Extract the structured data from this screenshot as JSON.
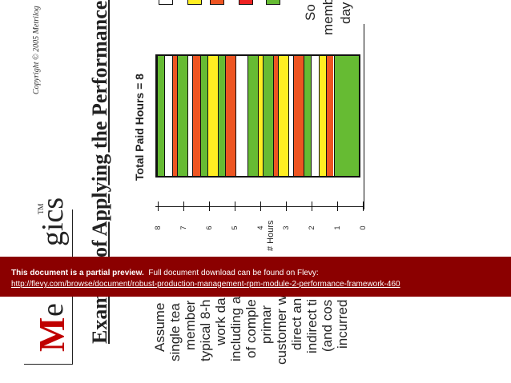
{
  "logo": {
    "m": "M",
    "e": "e",
    "tail": "gics",
    "tm": "TM"
  },
  "copyright": "Copyright © 2005 Metrilog",
  "title": {
    "left": "Exam",
    "right": "of Applying the Performance F"
  },
  "chart_data": {
    "type": "bar",
    "title": "Total Paid Hours = 8",
    "xlabel": "# Hours",
    "xlim": [
      0,
      8
    ],
    "ticks": [
      "8",
      "7",
      "6",
      "5",
      "4",
      "3",
      "2",
      "1",
      "0"
    ],
    "segments": [
      {
        "from": 0.0,
        "to": 1.0,
        "color": "#66bb33"
      },
      {
        "from": 1.0,
        "to": 1.3,
        "color": "#ee5522"
      },
      {
        "from": 1.3,
        "to": 1.6,
        "color": "#ffee22"
      },
      {
        "from": 1.6,
        "to": 1.9,
        "color": "#ffffff"
      },
      {
        "from": 1.9,
        "to": 2.2,
        "color": "#66bb33"
      },
      {
        "from": 2.2,
        "to": 2.6,
        "color": "#ee5522"
      },
      {
        "from": 2.6,
        "to": 2.8,
        "color": "#ffffff"
      },
      {
        "from": 2.8,
        "to": 3.2,
        "color": "#ffee22"
      },
      {
        "from": 3.2,
        "to": 3.4,
        "color": "#ee5522"
      },
      {
        "from": 3.4,
        "to": 3.8,
        "color": "#66bb33"
      },
      {
        "from": 3.8,
        "to": 4.0,
        "color": "#ffee22"
      },
      {
        "from": 4.0,
        "to": 4.4,
        "color": "#66bb33"
      },
      {
        "from": 4.4,
        "to": 4.9,
        "color": "#ffffff"
      },
      {
        "from": 4.9,
        "to": 5.3,
        "color": "#ee5522"
      },
      {
        "from": 5.3,
        "to": 5.6,
        "color": "#66bb33"
      },
      {
        "from": 5.6,
        "to": 6.0,
        "color": "#ffee22"
      },
      {
        "from": 6.0,
        "to": 6.3,
        "color": "#66bb33"
      },
      {
        "from": 6.3,
        "to": 6.6,
        "color": "#ee5522"
      },
      {
        "from": 6.6,
        "to": 6.8,
        "color": "#ffffff"
      },
      {
        "from": 6.8,
        "to": 7.2,
        "color": "#66bb33"
      },
      {
        "from": 7.2,
        "to": 7.4,
        "color": "#ee5522"
      },
      {
        "from": 7.4,
        "to": 7.7,
        "color": "#ffffff"
      },
      {
        "from": 7.7,
        "to": 8.0,
        "color": "#66bb33"
      }
    ]
  },
  "legend_colors": [
    "#ffffff",
    "#ffee22",
    "#ee5522",
    "#ee2222",
    "#66bb33"
  ],
  "right_text": {
    "col1": "So",
    "col2": "memb",
    "col3": "day"
  },
  "body_text": {
    "l1": "Assume",
    "l2": "single tea",
    "l3": "member",
    "l4": "typical 8-h",
    "l5": "work da",
    "l6": "including a",
    "l7": "of comple",
    "l8": "primar",
    "l9": "customer w",
    "l10": "direct an",
    "l11": "indirect ti",
    "l12": "(and cos",
    "l13": "incurred"
  },
  "banner": {
    "bold": "This document is a partial preview.",
    "rest": "Full document download can be found on Flevy:",
    "link": "http://flevy.com/browse/document/robust-production-management-rpm-module-2-performance-framework-460"
  }
}
